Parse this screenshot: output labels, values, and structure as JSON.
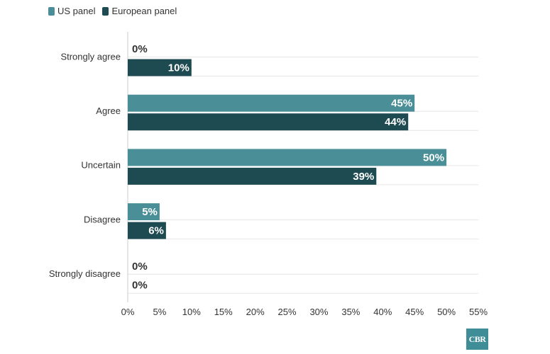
{
  "legend": {
    "us_label": "US panel",
    "eu_label": "European panel"
  },
  "colors": {
    "us": "#4a8f97",
    "eu": "#1e4a52",
    "grid": "#e6e6e6",
    "axis": "#333333",
    "zero_label": "#333333",
    "logo_bg": "#3e8d97"
  },
  "logo_text": "CBR",
  "chart_data": {
    "type": "bar",
    "orientation": "horizontal",
    "categories": [
      "Strongly agree",
      "Agree",
      "Uncertain",
      "Disagree",
      "Strongly disagree"
    ],
    "series": [
      {
        "name": "US panel",
        "values": [
          0,
          45,
          50,
          5,
          0
        ],
        "labels": [
          "0%",
          "45%",
          "50%",
          "5%",
          "0%"
        ]
      },
      {
        "name": "European panel",
        "values": [
          10,
          44,
          39,
          6,
          0
        ],
        "labels": [
          "10%",
          "44%",
          "39%",
          "6%",
          "0%"
        ]
      }
    ],
    "xlim": [
      0,
      55
    ],
    "xticks": [
      0,
      5,
      10,
      15,
      20,
      25,
      30,
      35,
      40,
      45,
      50,
      55
    ],
    "xtick_labels": [
      "0%",
      "5%",
      "10%",
      "15%",
      "20%",
      "25%",
      "30%",
      "35%",
      "40%",
      "45%",
      "50%",
      "55%"
    ],
    "title": "",
    "xlabel": "",
    "ylabel": "",
    "grid": true,
    "legend_position": "top-left"
  }
}
